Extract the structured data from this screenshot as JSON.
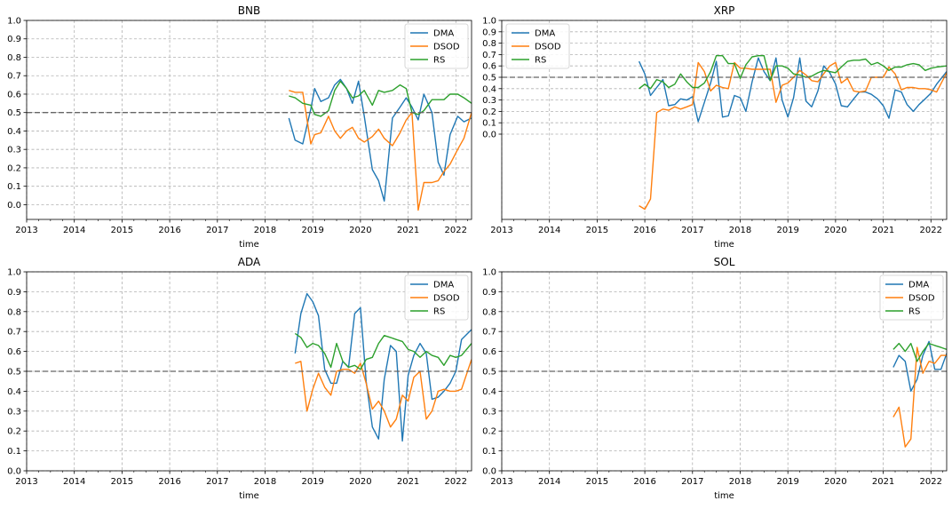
{
  "chart_data": [
    {
      "type": "line",
      "title": "BNB",
      "xlabel": "time",
      "xlim": [
        2013.0,
        2022.33
      ],
      "ylim": [
        -0.08,
        1.0
      ],
      "xticks": [
        "2013",
        "2014",
        "2015",
        "2016",
        "2017",
        "2018",
        "2019",
        "2020",
        "2021",
        "2022"
      ],
      "yticks": [
        "0.0",
        "0.1",
        "0.2",
        "0.3",
        "0.4",
        "0.5",
        "0.6",
        "0.7",
        "0.8",
        "0.9",
        "1.0"
      ],
      "reference_line": 0.5,
      "grid": true,
      "legend": "top-right",
      "series": [
        {
          "name": "DMA",
          "color": "#1f77b4",
          "x": [
            2018.5,
            2018.63,
            2018.79,
            2018.96,
            2019.04,
            2019.17,
            2019.33,
            2019.46,
            2019.58,
            2019.71,
            2019.83,
            2019.96,
            2020.08,
            2020.25,
            2020.38,
            2020.5,
            2020.67,
            2020.83,
            2020.96,
            2021.08,
            2021.21,
            2021.33,
            2021.5,
            2021.63,
            2021.75,
            2021.88,
            2022.04,
            2022.17,
            2022.33
          ],
          "y": [
            0.47,
            0.35,
            0.33,
            0.52,
            0.63,
            0.56,
            0.58,
            0.65,
            0.68,
            0.63,
            0.55,
            0.67,
            0.48,
            0.19,
            0.13,
            0.02,
            0.47,
            0.53,
            0.58,
            0.53,
            0.46,
            0.6,
            0.5,
            0.23,
            0.16,
            0.38,
            0.48,
            0.45,
            0.47
          ]
        },
        {
          "name": "DSOD",
          "color": "#ff7f0e",
          "x": [
            2018.5,
            2018.63,
            2018.79,
            2018.96,
            2019.04,
            2019.17,
            2019.33,
            2019.46,
            2019.58,
            2019.71,
            2019.83,
            2019.96,
            2020.08,
            2020.25,
            2020.38,
            2020.5,
            2020.67,
            2020.83,
            2020.96,
            2021.08,
            2021.21,
            2021.33,
            2021.5,
            2021.63,
            2021.75,
            2021.88,
            2022.04,
            2022.17,
            2022.33
          ],
          "y": [
            0.62,
            0.61,
            0.61,
            0.33,
            0.38,
            0.39,
            0.48,
            0.4,
            0.36,
            0.4,
            0.42,
            0.36,
            0.34,
            0.37,
            0.41,
            0.36,
            0.32,
            0.39,
            0.46,
            0.5,
            -0.03,
            0.12,
            0.12,
            0.13,
            0.18,
            0.22,
            0.3,
            0.36,
            0.5
          ]
        },
        {
          "name": "RS",
          "color": "#2ca02c",
          "x": [
            2018.5,
            2018.63,
            2018.79,
            2018.96,
            2019.04,
            2019.17,
            2019.33,
            2019.46,
            2019.58,
            2019.71,
            2019.83,
            2019.96,
            2020.08,
            2020.25,
            2020.38,
            2020.5,
            2020.67,
            2020.83,
            2020.96,
            2021.08,
            2021.21,
            2021.33,
            2021.5,
            2021.63,
            2021.75,
            2021.88,
            2022.04,
            2022.17,
            2022.33
          ],
          "y": [
            0.59,
            0.58,
            0.55,
            0.54,
            0.49,
            0.48,
            0.51,
            0.62,
            0.67,
            0.63,
            0.58,
            0.59,
            0.62,
            0.54,
            0.62,
            0.61,
            0.62,
            0.65,
            0.63,
            0.5,
            0.49,
            0.51,
            0.57,
            0.57,
            0.57,
            0.6,
            0.6,
            0.58,
            0.55
          ]
        }
      ]
    },
    {
      "type": "line",
      "title": "XRP",
      "xlabel": "time",
      "xlim": [
        2013.0,
        2022.33
      ],
      "ylim": [
        -0.75,
        1.0
      ],
      "xticks": [
        "2013",
        "2014",
        "2015",
        "2016",
        "2017",
        "2018",
        "2019",
        "2020",
        "2021",
        "2022"
      ],
      "yticks": [
        "0.0",
        "0.1",
        "0.2",
        "0.3",
        "0.4",
        "0.5",
        "0.6",
        "0.7",
        "0.8",
        "0.9",
        "1.0"
      ],
      "reference_line": 0.5,
      "grid": true,
      "legend": "top-left",
      "series": [
        {
          "name": "DMA",
          "color": "#1f77b4",
          "x": [
            2015.88,
            2016.0,
            2016.12,
            2016.25,
            2016.38,
            2016.5,
            2016.63,
            2016.75,
            2016.88,
            2017.0,
            2017.12,
            2017.25,
            2017.38,
            2017.5,
            2017.63,
            2017.75,
            2017.88,
            2018.0,
            2018.12,
            2018.25,
            2018.38,
            2018.5,
            2018.63,
            2018.75,
            2018.88,
            2019.0,
            2019.12,
            2019.25,
            2019.38,
            2019.5,
            2019.63,
            2019.75,
            2019.88,
            2020.0,
            2020.12,
            2020.25,
            2020.38,
            2020.5,
            2020.63,
            2020.75,
            2020.88,
            2021.0,
            2021.12,
            2021.25,
            2021.38,
            2021.5,
            2021.63,
            2021.75,
            2021.88,
            2022.0,
            2022.12,
            2022.33
          ],
          "y": [
            0.64,
            0.53,
            0.34,
            0.41,
            0.48,
            0.25,
            0.26,
            0.31,
            0.3,
            0.33,
            0.11,
            0.28,
            0.45,
            0.64,
            0.15,
            0.16,
            0.34,
            0.32,
            0.2,
            0.46,
            0.67,
            0.55,
            0.47,
            0.67,
            0.3,
            0.15,
            0.32,
            0.67,
            0.29,
            0.24,
            0.38,
            0.6,
            0.54,
            0.44,
            0.25,
            0.24,
            0.31,
            0.37,
            0.37,
            0.35,
            0.31,
            0.25,
            0.14,
            0.39,
            0.37,
            0.26,
            0.2,
            0.26,
            0.31,
            0.36,
            0.44,
            0.55
          ]
        },
        {
          "name": "DSOD",
          "color": "#ff7f0e",
          "x": [
            2015.88,
            2016.0,
            2016.12,
            2016.25,
            2016.38,
            2016.5,
            2016.63,
            2016.75,
            2016.88,
            2017.0,
            2017.12,
            2017.25,
            2017.38,
            2017.5,
            2017.63,
            2017.75,
            2017.88,
            2018.0,
            2018.12,
            2018.25,
            2018.38,
            2018.5,
            2018.63,
            2018.75,
            2018.88,
            2019.0,
            2019.12,
            2019.25,
            2019.38,
            2019.5,
            2019.63,
            2019.75,
            2019.88,
            2020.0,
            2020.12,
            2020.25,
            2020.38,
            2020.5,
            2020.63,
            2020.75,
            2020.88,
            2021.0,
            2021.12,
            2021.25,
            2021.38,
            2021.5,
            2021.63,
            2021.75,
            2021.88,
            2022.0,
            2022.12,
            2022.33
          ],
          "y": [
            -0.63,
            -0.66,
            -0.57,
            0.19,
            0.22,
            0.21,
            0.24,
            0.22,
            0.24,
            0.26,
            0.63,
            0.55,
            0.38,
            0.43,
            0.41,
            0.4,
            0.63,
            0.58,
            0.58,
            0.57,
            0.57,
            0.57,
            0.57,
            0.28,
            0.43,
            0.45,
            0.5,
            0.56,
            0.52,
            0.47,
            0.46,
            0.53,
            0.6,
            0.63,
            0.45,
            0.49,
            0.38,
            0.37,
            0.38,
            0.5,
            0.5,
            0.5,
            0.59,
            0.53,
            0.39,
            0.41,
            0.41,
            0.4,
            0.4,
            0.39,
            0.37,
            0.54
          ]
        },
        {
          "name": "RS",
          "color": "#2ca02c",
          "x": [
            2015.88,
            2016.0,
            2016.12,
            2016.25,
            2016.38,
            2016.5,
            2016.63,
            2016.75,
            2016.88,
            2017.0,
            2017.12,
            2017.25,
            2017.38,
            2017.5,
            2017.63,
            2017.75,
            2017.88,
            2018.0,
            2018.12,
            2018.25,
            2018.38,
            2018.5,
            2018.63,
            2018.75,
            2018.88,
            2019.0,
            2019.12,
            2019.25,
            2019.38,
            2019.5,
            2019.63,
            2019.75,
            2019.88,
            2020.0,
            2020.12,
            2020.25,
            2020.38,
            2020.5,
            2020.63,
            2020.75,
            2020.88,
            2021.0,
            2021.12,
            2021.25,
            2021.38,
            2021.5,
            2021.63,
            2021.75,
            2021.88,
            2022.0,
            2022.12,
            2022.33
          ],
          "y": [
            0.4,
            0.44,
            0.4,
            0.48,
            0.46,
            0.41,
            0.44,
            0.53,
            0.46,
            0.41,
            0.41,
            0.45,
            0.55,
            0.69,
            0.69,
            0.62,
            0.62,
            0.49,
            0.61,
            0.68,
            0.69,
            0.69,
            0.47,
            0.6,
            0.6,
            0.58,
            0.53,
            0.52,
            0.5,
            0.51,
            0.54,
            0.56,
            0.55,
            0.54,
            0.59,
            0.64,
            0.65,
            0.65,
            0.66,
            0.61,
            0.63,
            0.6,
            0.56,
            0.59,
            0.59,
            0.61,
            0.62,
            0.61,
            0.56,
            0.58,
            0.59,
            0.6
          ]
        }
      ]
    },
    {
      "type": "line",
      "title": "ADA",
      "xlabel": "time",
      "xlim": [
        2013.0,
        2022.33
      ],
      "ylim": [
        0.0,
        1.0
      ],
      "xticks": [
        "2013",
        "2014",
        "2015",
        "2016",
        "2017",
        "2018",
        "2019",
        "2020",
        "2021",
        "2022"
      ],
      "yticks": [
        "0.0",
        "0.1",
        "0.2",
        "0.3",
        "0.4",
        "0.5",
        "0.6",
        "0.7",
        "0.8",
        "0.9",
        "1.0"
      ],
      "reference_line": 0.5,
      "grid": true,
      "legend": "top-right",
      "series": [
        {
          "name": "DMA",
          "color": "#1f77b4",
          "x": [
            2018.63,
            2018.75,
            2018.88,
            2019.0,
            2019.12,
            2019.25,
            2019.38,
            2019.5,
            2019.63,
            2019.75,
            2019.88,
            2020.0,
            2020.12,
            2020.25,
            2020.38,
            2020.5,
            2020.63,
            2020.75,
            2020.88,
            2021.0,
            2021.12,
            2021.25,
            2021.38,
            2021.5,
            2021.63,
            2021.75,
            2021.88,
            2022.0,
            2022.12,
            2022.33
          ],
          "y": [
            0.59,
            0.79,
            0.89,
            0.85,
            0.78,
            0.51,
            0.44,
            0.44,
            0.55,
            0.52,
            0.79,
            0.82,
            0.45,
            0.22,
            0.16,
            0.46,
            0.63,
            0.6,
            0.15,
            0.48,
            0.58,
            0.64,
            0.59,
            0.36,
            0.37,
            0.4,
            0.44,
            0.5,
            0.66,
            0.71
          ]
        },
        {
          "name": "DSOD",
          "color": "#ff7f0e",
          "x": [
            2018.63,
            2018.75,
            2018.88,
            2019.0,
            2019.12,
            2019.25,
            2019.38,
            2019.5,
            2019.63,
            2019.75,
            2019.88,
            2020.0,
            2020.12,
            2020.25,
            2020.38,
            2020.5,
            2020.63,
            2020.75,
            2020.88,
            2021.0,
            2021.12,
            2021.25,
            2021.38,
            2021.5,
            2021.63,
            2021.75,
            2021.88,
            2022.0,
            2022.12,
            2022.33
          ],
          "y": [
            0.54,
            0.55,
            0.3,
            0.41,
            0.49,
            0.42,
            0.38,
            0.5,
            0.51,
            0.51,
            0.49,
            0.54,
            0.44,
            0.31,
            0.35,
            0.3,
            0.22,
            0.26,
            0.38,
            0.35,
            0.47,
            0.5,
            0.26,
            0.3,
            0.4,
            0.41,
            0.4,
            0.4,
            0.41,
            0.56
          ]
        },
        {
          "name": "RS",
          "color": "#2ca02c",
          "x": [
            2018.63,
            2018.75,
            2018.88,
            2019.0,
            2019.12,
            2019.25,
            2019.38,
            2019.5,
            2019.63,
            2019.75,
            2019.88,
            2020.0,
            2020.12,
            2020.25,
            2020.38,
            2020.5,
            2020.63,
            2020.75,
            2020.88,
            2021.0,
            2021.12,
            2021.25,
            2021.38,
            2021.5,
            2021.63,
            2021.75,
            2021.88,
            2022.0,
            2022.12,
            2022.33
          ],
          "y": [
            0.69,
            0.67,
            0.62,
            0.64,
            0.63,
            0.59,
            0.52,
            0.64,
            0.55,
            0.52,
            0.53,
            0.51,
            0.56,
            0.57,
            0.64,
            0.68,
            0.67,
            0.66,
            0.65,
            0.61,
            0.6,
            0.57,
            0.6,
            0.58,
            0.57,
            0.53,
            0.58,
            0.57,
            0.58,
            0.64
          ]
        }
      ]
    },
    {
      "type": "line",
      "title": "SOL",
      "xlabel": "time",
      "xlim": [
        2013.0,
        2022.33
      ],
      "ylim": [
        0.0,
        1.0
      ],
      "xticks": [
        "2013",
        "2014",
        "2015",
        "2016",
        "2017",
        "2018",
        "2019",
        "2020",
        "2021",
        "2022"
      ],
      "yticks": [
        "0.0",
        "0.1",
        "0.2",
        "0.3",
        "0.4",
        "0.5",
        "0.6",
        "0.7",
        "0.8",
        "0.9",
        "1.0"
      ],
      "reference_line": 0.5,
      "grid": true,
      "legend": "top-right",
      "series": [
        {
          "name": "DMA",
          "color": "#1f77b4",
          "x": [
            2021.21,
            2021.33,
            2021.46,
            2021.58,
            2021.71,
            2021.83,
            2021.96,
            2022.08,
            2022.21,
            2022.33
          ],
          "y": [
            0.52,
            0.58,
            0.55,
            0.4,
            0.46,
            0.58,
            0.65,
            0.51,
            0.51,
            0.59
          ]
        },
        {
          "name": "DSOD",
          "color": "#ff7f0e",
          "x": [
            2021.21,
            2021.33,
            2021.46,
            2021.58,
            2021.71,
            2021.83,
            2021.96,
            2022.08,
            2022.21,
            2022.33
          ],
          "y": [
            0.27,
            0.32,
            0.12,
            0.16,
            0.62,
            0.49,
            0.55,
            0.54,
            0.58,
            0.58
          ]
        },
        {
          "name": "RS",
          "color": "#2ca02c",
          "x": [
            2021.21,
            2021.33,
            2021.46,
            2021.58,
            2021.71,
            2021.83,
            2021.96,
            2022.08,
            2022.21,
            2022.33
          ],
          "y": [
            0.61,
            0.64,
            0.6,
            0.64,
            0.55,
            0.6,
            0.64,
            0.63,
            0.62,
            0.61
          ]
        }
      ]
    }
  ]
}
